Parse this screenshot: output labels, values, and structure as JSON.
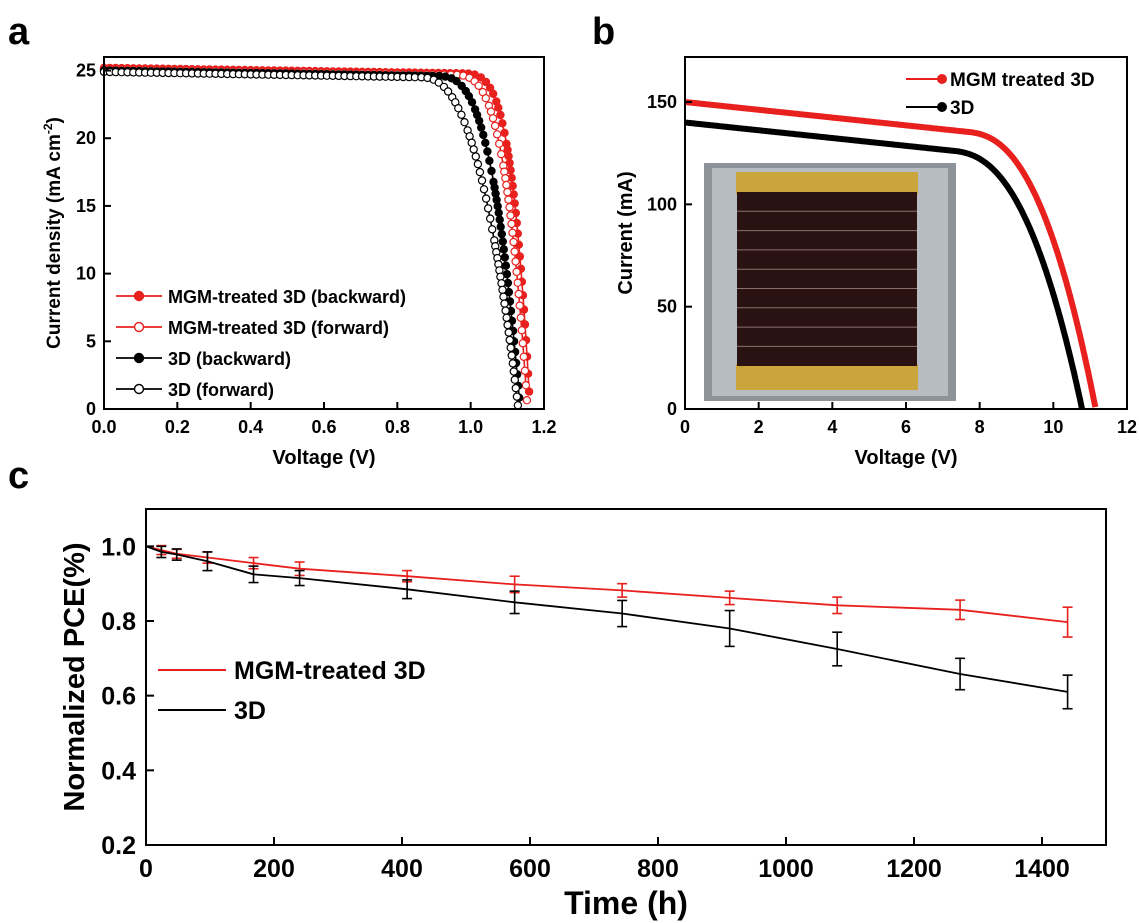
{
  "panels": {
    "a": "a",
    "b": "b",
    "c": "c"
  },
  "chart_data": [
    {
      "id": "a",
      "type": "line",
      "xlabel": "Voltage (V)",
      "ylabel": "Current density (mA cm",
      "ylabel_sup": "-2",
      "ylabel_end": ")",
      "xlim": [
        0,
        1.2
      ],
      "ylim": [
        0,
        26
      ],
      "xticks": [
        "0.0",
        "0.2",
        "0.4",
        "0.6",
        "0.8",
        "1.0",
        "1.2"
      ],
      "yticks": [
        "0",
        "5",
        "10",
        "15",
        "20",
        "25"
      ],
      "legend_position": "bottom-left",
      "series": [
        {
          "name": "MGM-treated 3D (backward)",
          "color": "#e8201e",
          "marker": "filled",
          "jsc": 25.2,
          "voc": 1.162,
          "knee": 0.955,
          "shape": 6
        },
        {
          "name": "MGM-treated 3D (forward)",
          "color": "#e8201e",
          "marker": "open",
          "jsc": 25.1,
          "voc": 1.155,
          "knee": 0.935,
          "shape": 5
        },
        {
          "name": "3D (backward)",
          "color": "#000000",
          "marker": "filled",
          "jsc": 25.0,
          "voc": 1.135,
          "knee": 0.9,
          "shape": 4
        },
        {
          "name": "3D (forward)",
          "color": "#000000",
          "marker": "open",
          "jsc": 24.9,
          "voc": 1.13,
          "knee": 0.86,
          "shape": 3
        }
      ]
    },
    {
      "id": "b",
      "type": "line",
      "xlabel": "Voltage (V)",
      "ylabel": "Current (mA)",
      "xlim": [
        0,
        12
      ],
      "ylim": [
        0,
        172
      ],
      "xticks": [
        "0",
        "2",
        "4",
        "6",
        "8",
        "10",
        "12"
      ],
      "yticks": [
        "0",
        "50",
        "100",
        "150"
      ],
      "legend_position": "top-right",
      "series": [
        {
          "name": "MGM treated 3D",
          "color": "#e8201e",
          "isc": 150,
          "voc": 11.15,
          "knee": 9.6,
          "slope": 1.9
        },
        {
          "name": "3D",
          "color": "#000000",
          "isc": 140,
          "voc": 10.78,
          "knee": 9.1,
          "slope": 1.9
        }
      ],
      "inset": "photo"
    },
    {
      "id": "c",
      "type": "line",
      "xlabel": "Time (h)",
      "ylabel": "Normalized PCE(%)",
      "xlim": [
        0,
        1500
      ],
      "ylim": [
        0.2,
        1.1
      ],
      "xticks": [
        "0",
        "200",
        "400",
        "600",
        "800",
        "1000",
        "1200",
        "1400"
      ],
      "yticks": [
        "0.2",
        "0.4",
        "0.6",
        "0.8",
        "1.0"
      ],
      "legend_position": "middle-left",
      "series": [
        {
          "name": "MGM-treated 3D",
          "color": "#e8201e",
          "x": [
            0,
            24,
            48,
            96,
            168,
            240,
            408,
            576,
            744,
            912,
            1080,
            1272,
            1440
          ],
          "y": [
            1.0,
            0.99,
            0.98,
            0.97,
            0.955,
            0.94,
            0.92,
            0.898,
            0.882,
            0.862,
            0.842,
            0.83,
            0.797
          ],
          "err": [
            0,
            0.012,
            0.012,
            0.015,
            0.015,
            0.018,
            0.015,
            0.022,
            0.018,
            0.018,
            0.022,
            0.026,
            0.04
          ]
        },
        {
          "name": "3D",
          "color": "#000000",
          "x": [
            0,
            24,
            48,
            96,
            168,
            240,
            408,
            576,
            744,
            912,
            1080,
            1272,
            1440
          ],
          "y": [
            1.0,
            0.985,
            0.978,
            0.96,
            0.925,
            0.915,
            0.885,
            0.85,
            0.82,
            0.78,
            0.725,
            0.658,
            0.61
          ],
          "err": [
            0,
            0.015,
            0.015,
            0.025,
            0.022,
            0.02,
            0.025,
            0.03,
            0.035,
            0.048,
            0.045,
            0.042,
            0.045
          ]
        }
      ]
    }
  ]
}
